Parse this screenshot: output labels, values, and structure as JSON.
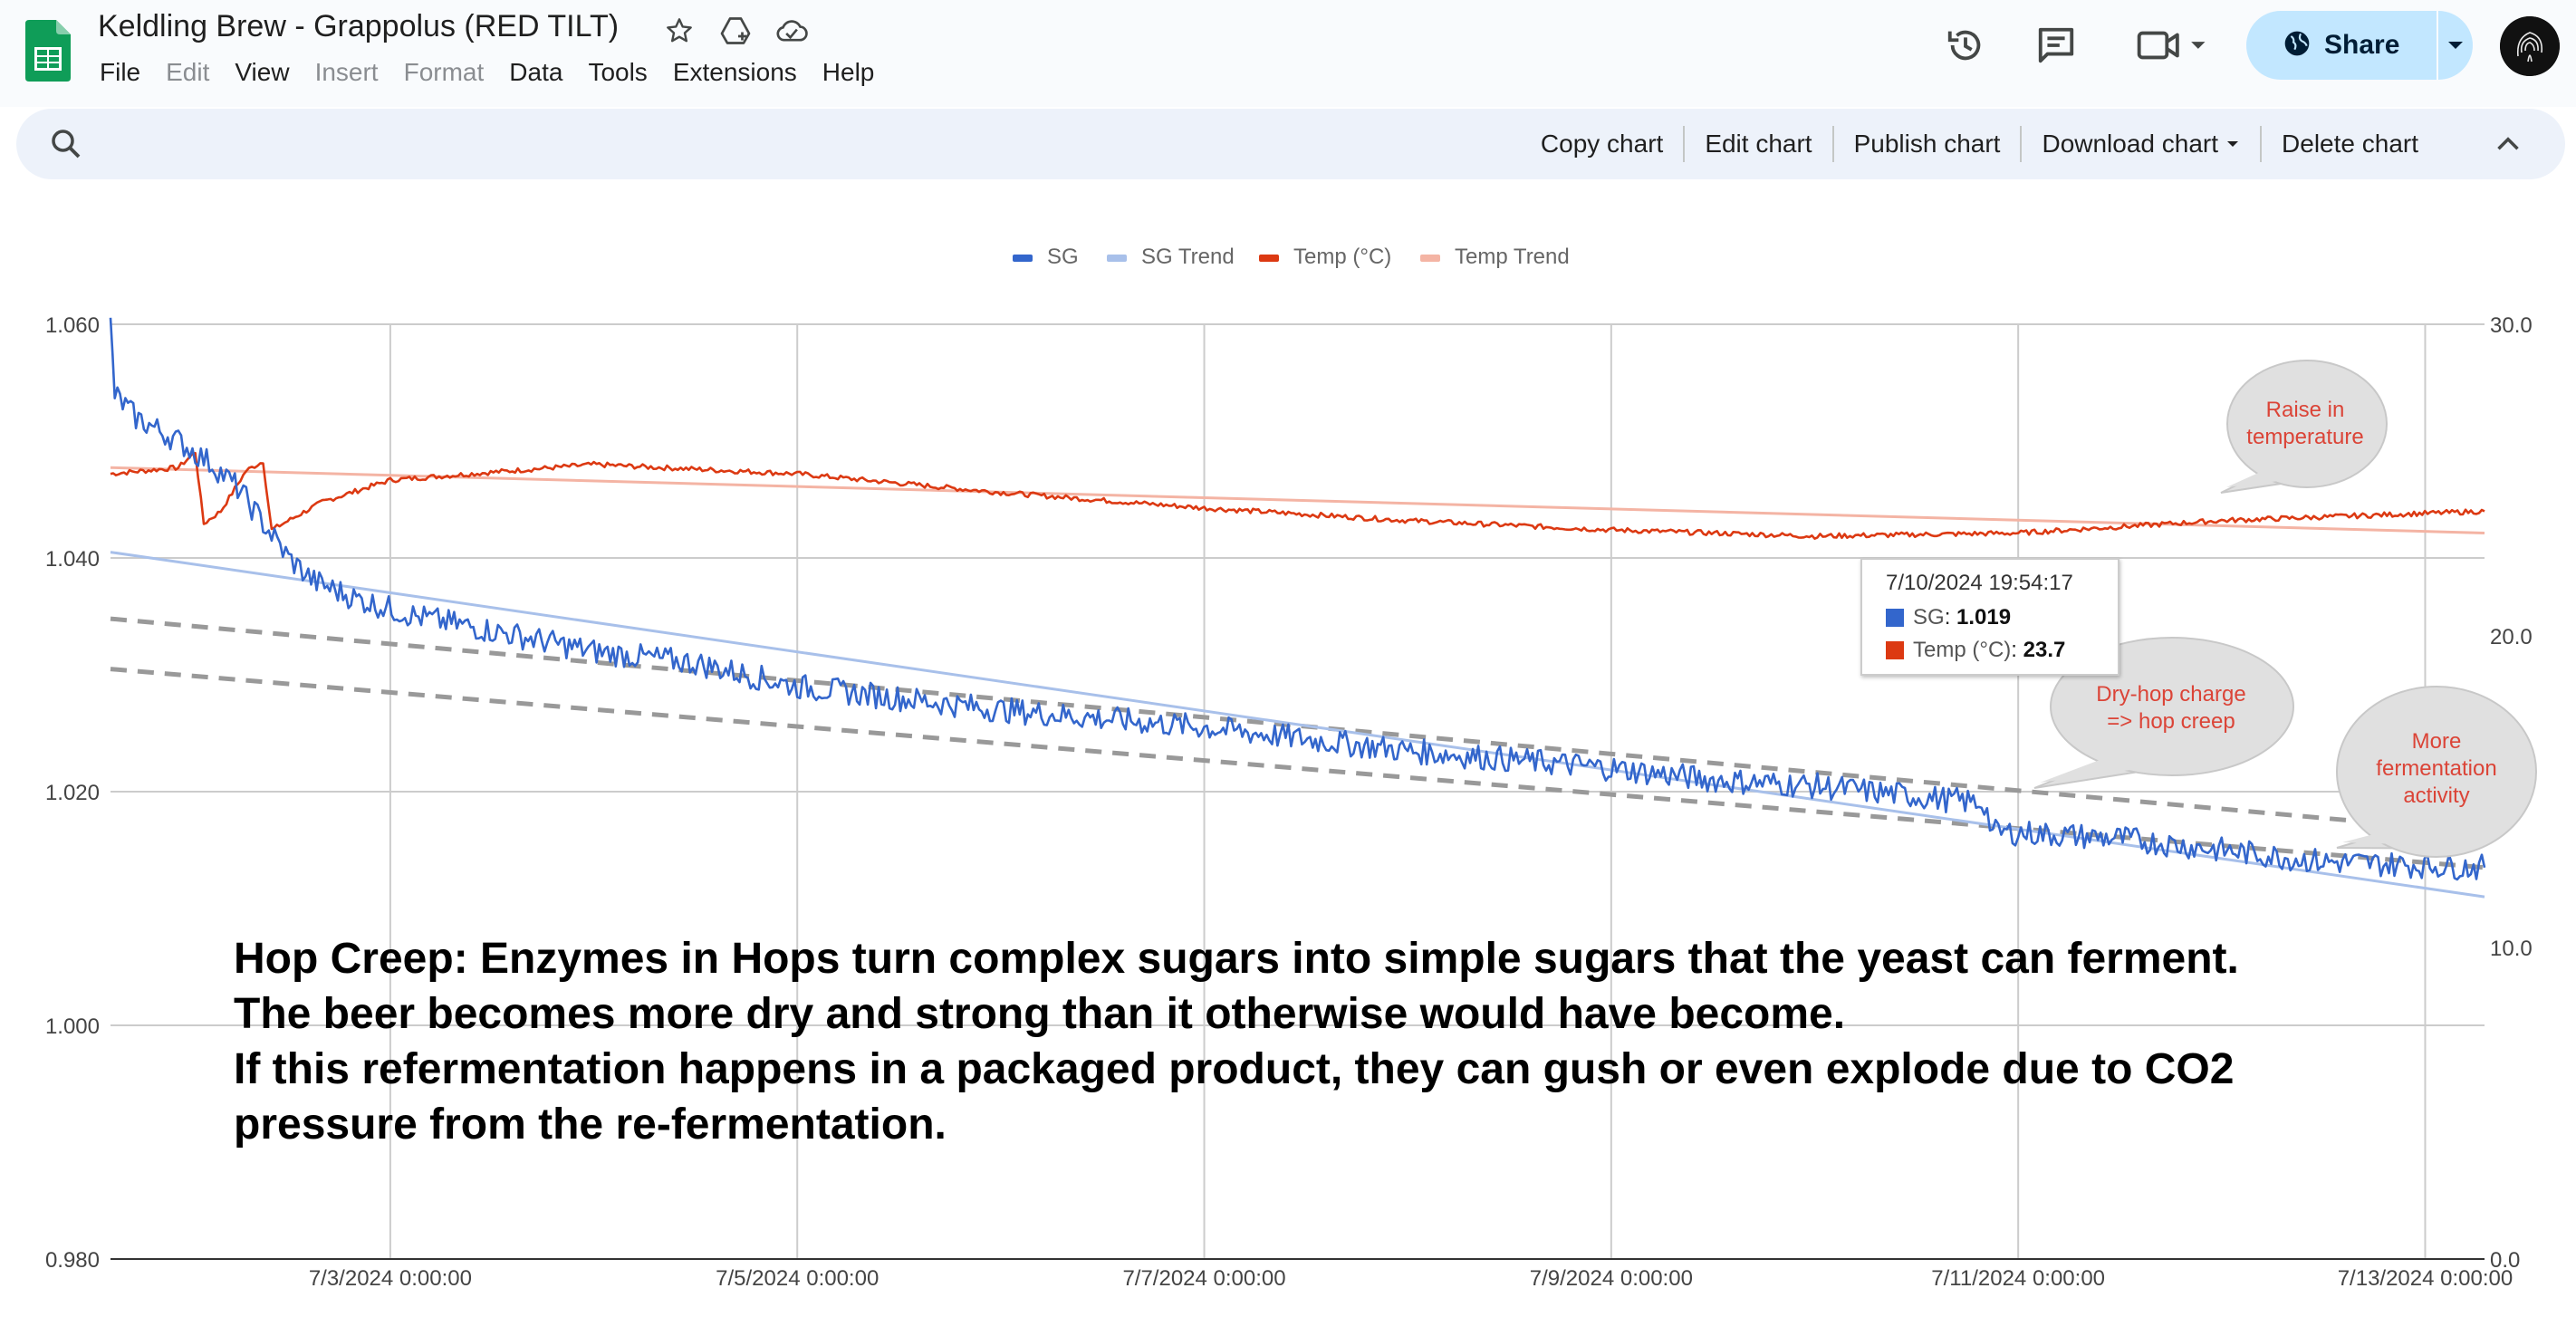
{
  "app": {
    "title": "Keldling Brew - Grappolus (RED TILT)",
    "icons": [
      "star-icon",
      "move-to-drive-icon",
      "cloud-status-icon"
    ]
  },
  "menu": [
    {
      "label": "File",
      "enabled": true
    },
    {
      "label": "Edit",
      "enabled": false
    },
    {
      "label": "View",
      "enabled": true
    },
    {
      "label": "Insert",
      "enabled": false
    },
    {
      "label": "Format",
      "enabled": false
    },
    {
      "label": "Data",
      "enabled": true
    },
    {
      "label": "Tools",
      "enabled": true
    },
    {
      "label": "Extensions",
      "enabled": true
    },
    {
      "label": "Help",
      "enabled": true
    }
  ],
  "header_actions": {
    "share_label": "Share",
    "icons": [
      "history-icon",
      "comments-icon",
      "meet-icon"
    ],
    "share_color": "#c2e7ff"
  },
  "chart_toolbar": {
    "actions": [
      {
        "label": "Copy chart",
        "dropdown": false
      },
      {
        "label": "Edit chart",
        "dropdown": false
      },
      {
        "label": "Publish chart",
        "dropdown": false
      },
      {
        "label": "Download chart",
        "dropdown": true
      },
      {
        "label": "Delete chart",
        "dropdown": false
      }
    ]
  },
  "chart_data": {
    "type": "line",
    "title": "",
    "legend": {
      "position": "top",
      "entries": [
        {
          "name": "SG",
          "color": "#3366cc"
        },
        {
          "name": "SG Trend",
          "color": "#a8c0ea"
        },
        {
          "name": "Temp (°C)",
          "color": "#dc3912"
        },
        {
          "name": "Temp Trend",
          "color": "#f4b4a4"
        }
      ]
    },
    "x_axis": {
      "type": "datetime",
      "range": [
        "2024-07-01T15:00:00",
        "2024-07-13T07:00:00"
      ],
      "ticks": [
        {
          "label": "7/3/2024 0:00:00",
          "value": "2024-07-03T00:00:00"
        },
        {
          "label": "7/5/2024 0:00:00",
          "value": "2024-07-05T00:00:00"
        },
        {
          "label": "7/7/2024 0:00:00",
          "value": "2024-07-07T00:00:00"
        },
        {
          "label": "7/9/2024 0:00:00",
          "value": "2024-07-09T00:00:00"
        },
        {
          "label": "7/11/2024 0:00:00",
          "value": "2024-07-11T00:00:00"
        },
        {
          "label": "7/13/2024 0:00:00",
          "value": "2024-07-13T00:00:00"
        }
      ]
    },
    "y_left": {
      "range": [
        0.98,
        1.06
      ],
      "ticks": [
        {
          "label": "0.980",
          "value": 0.98
        },
        {
          "label": "1.000",
          "value": 1.0
        },
        {
          "label": "1.020",
          "value": 1.02
        },
        {
          "label": "1.040",
          "value": 1.04
        },
        {
          "label": "1.060",
          "value": 1.06
        }
      ]
    },
    "y_right": {
      "range": [
        0,
        30
      ],
      "ticks": [
        {
          "label": "0.0",
          "value": 0
        },
        {
          "label": "10.0",
          "value": 10
        },
        {
          "label": "20.0",
          "value": 20
        },
        {
          "label": "30.0",
          "value": 30
        }
      ]
    },
    "grid": true,
    "series": [
      {
        "name": "SG",
        "axis": "left",
        "color": "#3366cc",
        "noise": 0.0011,
        "points": [
          [
            "2024-07-01T15:00:00",
            1.06
          ],
          [
            "2024-07-01T15:30:00",
            1.054
          ],
          [
            "2024-07-01T18:00:00",
            1.052
          ],
          [
            "2024-07-01T23:00:00",
            1.05
          ],
          [
            "2024-07-02T03:00:00",
            1.048
          ],
          [
            "2024-07-02T06:00:00",
            1.046
          ],
          [
            "2024-07-02T09:00:00",
            1.043
          ],
          [
            "2024-07-02T12:00:00",
            1.04
          ],
          [
            "2024-07-02T15:00:00",
            1.038
          ],
          [
            "2024-07-02T20:00:00",
            1.0365
          ],
          [
            "2024-07-03T03:00:00",
            1.035
          ],
          [
            "2024-07-03T14:00:00",
            1.0335
          ],
          [
            "2024-07-04T00:00:00",
            1.032
          ],
          [
            "2024-07-04T12:00:00",
            1.031
          ],
          [
            "2024-07-05T00:00:00",
            1.029
          ],
          [
            "2024-07-06T00:00:00",
            1.027
          ],
          [
            "2024-07-07T00:00:00",
            1.0255
          ],
          [
            "2024-07-08T00:00:00",
            1.0235
          ],
          [
            "2024-07-09T00:00:00",
            1.022
          ],
          [
            "2024-07-09T12:00:00",
            1.021
          ],
          [
            "2024-07-10T00:00:00",
            1.0205
          ],
          [
            "2024-07-10T20:00:00",
            1.019
          ],
          [
            "2024-07-10T21:00:00",
            1.0165
          ],
          [
            "2024-07-11T00:00:00",
            1.0165
          ],
          [
            "2024-07-11T12:00:00",
            1.016
          ],
          [
            "2024-07-12T00:00:00",
            1.015
          ],
          [
            "2024-07-12T12:00:00",
            1.014
          ],
          [
            "2024-07-13T07:00:00",
            1.0135
          ]
        ]
      },
      {
        "name": "SG Trend",
        "axis": "left",
        "color": "#a8c0ea",
        "points": [
          [
            "2024-07-01T15:00:00",
            1.0405
          ],
          [
            "2024-07-13T07:00:00",
            1.011
          ]
        ]
      },
      {
        "name": "Temp (°C)",
        "axis": "right",
        "color": "#dc3912",
        "noise": 0.08,
        "points": [
          [
            "2024-07-01T15:00:00",
            25.2
          ],
          [
            "2024-07-01T23:00:00",
            25.4
          ],
          [
            "2024-07-02T01:00:00",
            25.9
          ],
          [
            "2024-07-02T02:00:00",
            23.6
          ],
          [
            "2024-07-02T04:00:00",
            24.0
          ],
          [
            "2024-07-02T07:00:00",
            25.3
          ],
          [
            "2024-07-02T09:00:00",
            25.6
          ],
          [
            "2024-07-02T10:00:00",
            23.4
          ],
          [
            "2024-07-02T16:00:00",
            24.3
          ],
          [
            "2024-07-03T00:00:00",
            25.0
          ],
          [
            "2024-07-04T00:00:00",
            25.5
          ],
          [
            "2024-07-05T00:00:00",
            25.2
          ],
          [
            "2024-07-06T00:00:00",
            24.6
          ],
          [
            "2024-07-07T00:00:00",
            24.1
          ],
          [
            "2024-07-08T00:00:00",
            23.7
          ],
          [
            "2024-07-09T00:00:00",
            23.4
          ],
          [
            "2024-07-10T00:00:00",
            23.2
          ],
          [
            "2024-07-11T00:00:00",
            23.3
          ],
          [
            "2024-07-12T00:00:00",
            23.7
          ],
          [
            "2024-07-13T07:00:00",
            24.0
          ]
        ]
      },
      {
        "name": "Temp Trend",
        "axis": "right",
        "color": "#f4b4a4",
        "points": [
          [
            "2024-07-01T15:00:00",
            25.4
          ],
          [
            "2024-07-13T07:00:00",
            23.3
          ]
        ]
      }
    ],
    "guide_lines": [
      {
        "style": "dashed",
        "color": "#999999",
        "axis": "left",
        "points": [
          [
            "2024-07-01T15:00:00",
            1.0348
          ],
          [
            "2024-07-13T07:00:00",
            1.0165
          ]
        ]
      },
      {
        "style": "dashed",
        "color": "#999999",
        "axis": "left",
        "points": [
          [
            "2024-07-01T15:00:00",
            1.0305
          ],
          [
            "2024-07-13T07:00:00",
            1.0135
          ]
        ]
      }
    ],
    "tooltip": {
      "date": "7/10/2024 19:54:17",
      "rows": [
        {
          "key": "SG",
          "value": "1.019",
          "color": "#3366cc"
        },
        {
          "key": "Temp (°C)",
          "value": "23.7",
          "color": "#dc3912"
        }
      ]
    },
    "annotations": [
      {
        "lines": [
          "Raise in",
          "temperature"
        ]
      },
      {
        "lines": [
          "Dry-hop charge",
          "=> hop creep"
        ]
      },
      {
        "lines": [
          "More",
          "fermentation",
          "activity"
        ]
      }
    ],
    "note": {
      "lines": [
        "Hop Creep: Enzymes in Hops turn complex sugars into simple sugars that the yeast can ferment.",
        "The beer becomes more dry and strong than it otherwise would have become.",
        "If this refermentation happens in a packaged product, they can gush or even explode due to CO2",
        "pressure from the re-fermentation."
      ]
    }
  }
}
